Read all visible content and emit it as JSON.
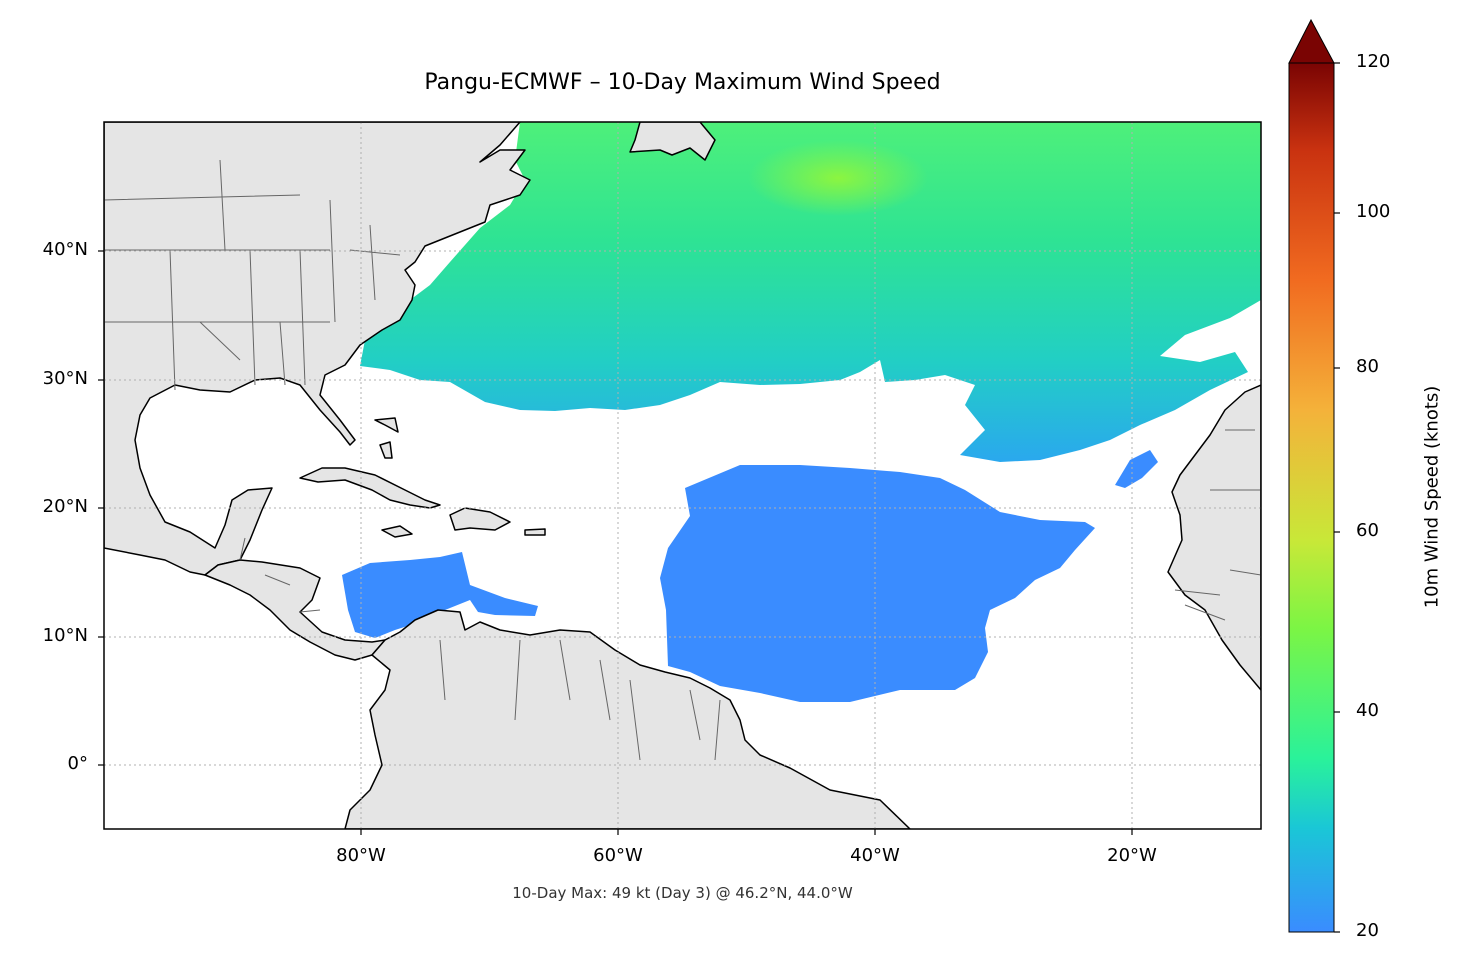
{
  "title": "Pangu-ECMWF – 10-Day Maximum Wind Speed",
  "subtitle": "10-Day Max: 49 kt (Day 3) @ 46.2°N, 44.0°W",
  "map": {
    "extent": {
      "lon": [
        -100,
        -10
      ],
      "lat": [
        -5,
        50
      ]
    },
    "land_color": "#e5e5e5",
    "ocean_color": "#ffffff",
    "lat_ticks": [
      "40°N",
      "30°N",
      "20°N",
      "10°N",
      "0°"
    ],
    "lon_ticks": [
      "80°W",
      "60°W",
      "40°W",
      "20°W"
    ],
    "gridlines": true
  },
  "colorbar": {
    "label": "10m Wind Speed (knots)",
    "ticks": [
      "20",
      "40",
      "60",
      "80",
      "100",
      "120"
    ],
    "range": [
      20,
      120
    ],
    "extend": "max",
    "colors": [
      "#3a8cff",
      "#1ac7d6",
      "#2af29a",
      "#7cf544",
      "#c8e838",
      "#f4b23a",
      "#f16b20",
      "#c93210",
      "#7a0403"
    ]
  },
  "wind_field": {
    "threshold_kt": 20,
    "max_kt": 49,
    "max_day": 3,
    "max_location": {
      "lat": 46.2,
      "lon": -44.0
    }
  }
}
